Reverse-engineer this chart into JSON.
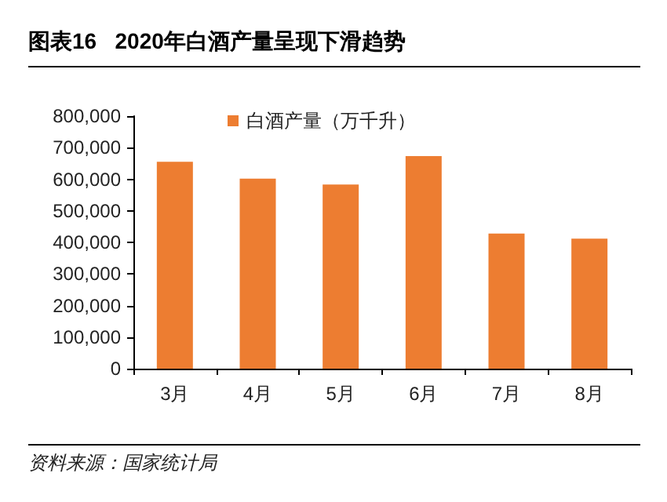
{
  "chart_data": {
    "type": "bar",
    "title": "图表16   2020年白酒产量呈现下滑趋势",
    "categories": [
      "3月",
      "4月",
      "5月",
      "6月",
      "7月",
      "8月"
    ],
    "series": [
      {
        "name": "白酒产量（万千升）",
        "color": "#ed7d31",
        "values": [
          655000,
          602000,
          583000,
          673000,
          428000,
          412000
        ]
      }
    ],
    "ylim": [
      0,
      800000
    ],
    "yticks": [
      0,
      {
        "value": 100000,
        "label": "100,000"
      },
      {
        "value": 200000,
        "label": "200,000"
      },
      {
        "value": 300000,
        "label": "300,000"
      },
      {
        "value": 400000,
        "label": "400,000"
      },
      {
        "value": 500000,
        "label": "500,000"
      },
      {
        "value": 600000,
        "label": "600,000"
      },
      {
        "value": 700000,
        "label": "700,000"
      },
      {
        "value": 800000,
        "label": "800,000"
      }
    ],
    "grid": false,
    "legend": "top",
    "annotations": [
      "资料来源：国家统计局"
    ]
  }
}
